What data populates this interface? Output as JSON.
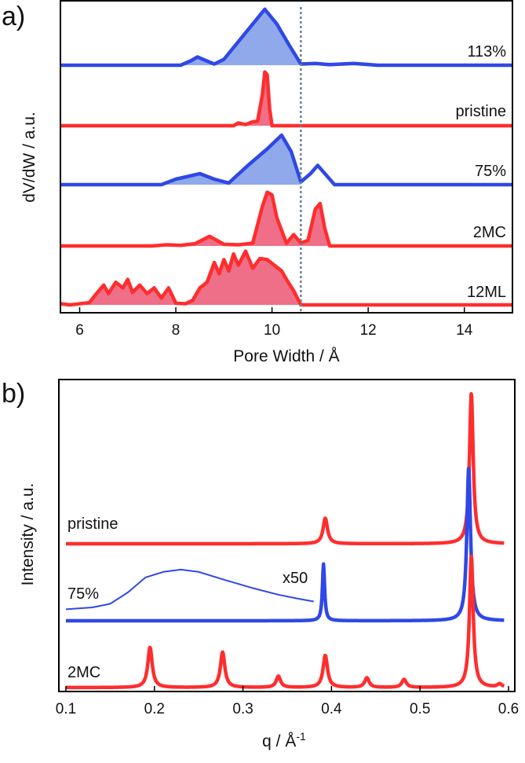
{
  "chart_data": [
    {
      "panel": "a)",
      "type": "area",
      "xlabel": "Pore Width / Å",
      "ylabel": "dV/dW / a.u.",
      "xlim": [
        5.6,
        15.0
      ],
      "xticks": [
        "6",
        "8",
        "10",
        "12",
        "14"
      ],
      "xtick_values": [
        6,
        8,
        10,
        12,
        14
      ],
      "yticks": [],
      "reference_line": {
        "x": 10.6,
        "style": "dotted",
        "color": "#6a8296"
      },
      "colors": {
        "red": "#ff2d2d",
        "red_fill": "#ee6f87",
        "blue": "#2f48e6",
        "blue_fill": "#8fa9ea"
      },
      "series": [
        {
          "name": "113%",
          "color": "blue",
          "fill_max_x": 10.6,
          "x": [
            5.6,
            8.1,
            8.3,
            8.45,
            8.65,
            8.8,
            9.0,
            9.3,
            9.6,
            9.85,
            10.1,
            10.35,
            10.6,
            10.9,
            11.2,
            11.7,
            12.2,
            15.0
          ],
          "y": [
            0,
            0,
            0.07,
            0.14,
            0.07,
            0.02,
            0.1,
            0.4,
            0.7,
            0.95,
            0.7,
            0.35,
            0.02,
            0.03,
            0.01,
            0.03,
            0,
            0
          ]
        },
        {
          "name": "pristine",
          "color": "red",
          "fill_max_x": 10.6,
          "x": [
            5.6,
            9.2,
            9.3,
            9.45,
            9.6,
            9.7,
            9.8,
            9.85,
            9.9,
            9.95,
            10.0,
            10.2,
            15.0
          ],
          "y": [
            0,
            0,
            0.05,
            0.02,
            0.07,
            0.08,
            0.55,
            0.95,
            0.9,
            0.3,
            0,
            0,
            0
          ]
        },
        {
          "name": "75%",
          "color": "blue",
          "fill_max_x": 10.6,
          "x": [
            5.6,
            7.7,
            8.0,
            8.3,
            8.5,
            8.8,
            9.1,
            9.5,
            9.9,
            10.2,
            10.4,
            10.6,
            10.8,
            10.95,
            11.1,
            11.3,
            15.0
          ],
          "y": [
            0,
            0,
            0.1,
            0.16,
            0.2,
            0.1,
            0.03,
            0.35,
            0.65,
            0.9,
            0.6,
            0.05,
            0.2,
            0.35,
            0.2,
            0,
            0
          ]
        },
        {
          "name": "2MC",
          "color": "red",
          "fill_max_x": 11.2,
          "x": [
            5.6,
            7.5,
            7.8,
            8.1,
            8.4,
            8.7,
            9.0,
            9.3,
            9.6,
            9.8,
            9.9,
            10.0,
            10.1,
            10.3,
            10.45,
            10.6,
            10.75,
            10.9,
            11.0,
            11.1,
            11.2,
            15.0
          ],
          "y": [
            0,
            0,
            0.02,
            0.01,
            0.04,
            0.17,
            0.03,
            0.02,
            0.05,
            0.7,
            0.95,
            0.9,
            0.5,
            0.05,
            0.2,
            0.05,
            0.1,
            0.65,
            0.75,
            0.3,
            0,
            0
          ]
        },
        {
          "name": "12ML",
          "color": "red",
          "fill_max_x": 10.6,
          "x": [
            5.6,
            5.8,
            6.0,
            6.2,
            6.35,
            6.5,
            6.6,
            6.75,
            6.9,
            7.0,
            7.1,
            7.25,
            7.4,
            7.55,
            7.7,
            7.85,
            8.0,
            8.2,
            8.35,
            8.5,
            8.65,
            8.8,
            8.9,
            9.0,
            9.1,
            9.2,
            9.3,
            9.45,
            9.6,
            9.75,
            9.9,
            10.05,
            10.2,
            10.3,
            10.45,
            10.6,
            15.0
          ],
          "y": [
            0.02,
            0,
            0.02,
            0.04,
            0.2,
            0.35,
            0.2,
            0.4,
            0.3,
            0.45,
            0.22,
            0.35,
            0.2,
            0.3,
            0.12,
            0.3,
            0.03,
            0.02,
            0.08,
            0.3,
            0.4,
            0.75,
            0.55,
            0.8,
            0.6,
            0.9,
            0.7,
            0.95,
            0.65,
            0.82,
            0.8,
            0.7,
            0.6,
            0.45,
            0.25,
            0,
            0
          ]
        }
      ]
    },
    {
      "panel": "b)",
      "type": "line",
      "xlabel": "q / Å",
      "xlabel_superscript": "-1",
      "ylabel": "Intensity / a.u.",
      "xlim": [
        0.1,
        0.6
      ],
      "xticks": [
        "0.1",
        "0.2",
        "0.3",
        "0.4",
        "0.5",
        "0.6"
      ],
      "xtick_values": [
        0.1,
        0.2,
        0.3,
        0.4,
        0.5,
        0.6
      ],
      "yticks": [],
      "series": [
        {
          "name": "pristine",
          "color": "red",
          "peaks": [
            {
              "q": 0.393,
              "height": 0.17,
              "width": 0.003
            },
            {
              "q": 0.558,
              "height": 1.0,
              "width": 0.0025
            }
          ]
        },
        {
          "name": "75%",
          "color": "blue",
          "peaks": [
            {
              "q": 0.391,
              "height": 0.37,
              "width": 0.0015
            },
            {
              "q": 0.555,
              "height": 1.0,
              "width": 0.0025
            }
          ]
        },
        {
          "name": "x50",
          "color": "blue",
          "role": "magnified inset of 75% low-q hump",
          "x": [
            0.1,
            0.13,
            0.15,
            0.17,
            0.19,
            0.21,
            0.23,
            0.25,
            0.28,
            0.31,
            0.34,
            0.36,
            0.38
          ],
          "y": [
            0.08,
            0.12,
            0.2,
            0.45,
            0.78,
            0.9,
            0.95,
            0.9,
            0.72,
            0.55,
            0.4,
            0.32,
            0.25
          ]
        },
        {
          "name": "2MC",
          "color": "red",
          "peaks": [
            {
              "q": 0.195,
              "height": 0.25,
              "width": 0.003
            },
            {
              "q": 0.277,
              "height": 0.22,
              "width": 0.003
            },
            {
              "q": 0.34,
              "height": 0.07,
              "width": 0.003
            },
            {
              "q": 0.393,
              "height": 0.2,
              "width": 0.003
            },
            {
              "q": 0.44,
              "height": 0.06,
              "width": 0.003
            },
            {
              "q": 0.482,
              "height": 0.05,
              "width": 0.003
            },
            {
              "q": 0.558,
              "height": 0.82,
              "width": 0.0025
            },
            {
              "q": 0.59,
              "height": 0.02,
              "width": 0.003
            }
          ]
        }
      ]
    }
  ]
}
